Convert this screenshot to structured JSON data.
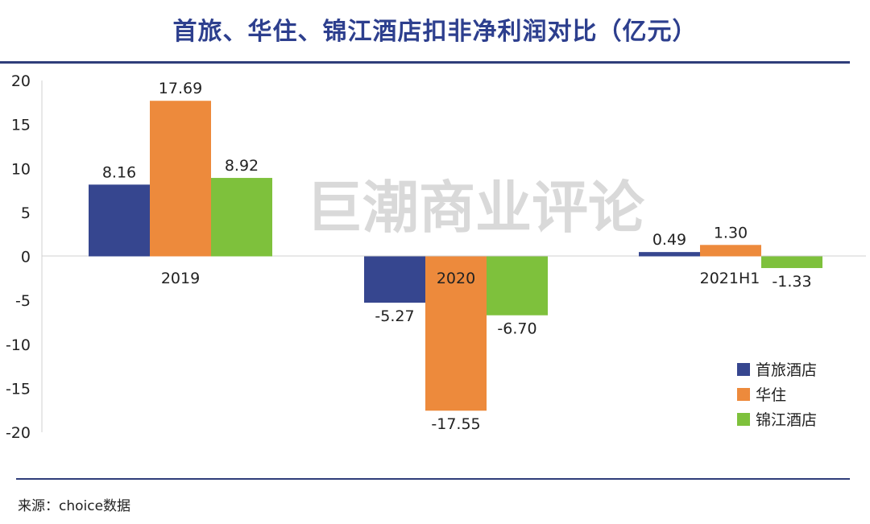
{
  "title": "首旅、华住、锦江酒店扣非净利润对比（亿元）",
  "watermark": "巨潮商业评论",
  "source": "来源：choice数据",
  "chart_data": {
    "type": "bar",
    "categories": [
      "2019",
      "2020",
      "2021H1"
    ],
    "series": [
      {
        "name": "首旅酒店",
        "values": [
          8.16,
          -5.27,
          0.49
        ],
        "labels": [
          "8.16",
          "-5.27",
          "0.49"
        ],
        "color": "#36468f"
      },
      {
        "name": "华住",
        "values": [
          17.69,
          -17.55,
          1.3
        ],
        "labels": [
          "17.69",
          "-17.55",
          "1.30"
        ],
        "color": "#ed8a3c"
      },
      {
        "name": "锦江酒店",
        "values": [
          8.92,
          -6.7,
          -1.33
        ],
        "labels": [
          "8.92",
          "-6.70",
          "-1.33"
        ],
        "color": "#7ec13c"
      }
    ],
    "ylim": [
      -20,
      20
    ],
    "yticks": [
      "20",
      "15",
      "10",
      "5",
      "0",
      "-5",
      "-10",
      "-15",
      "-20"
    ],
    "legend_position": "right"
  }
}
